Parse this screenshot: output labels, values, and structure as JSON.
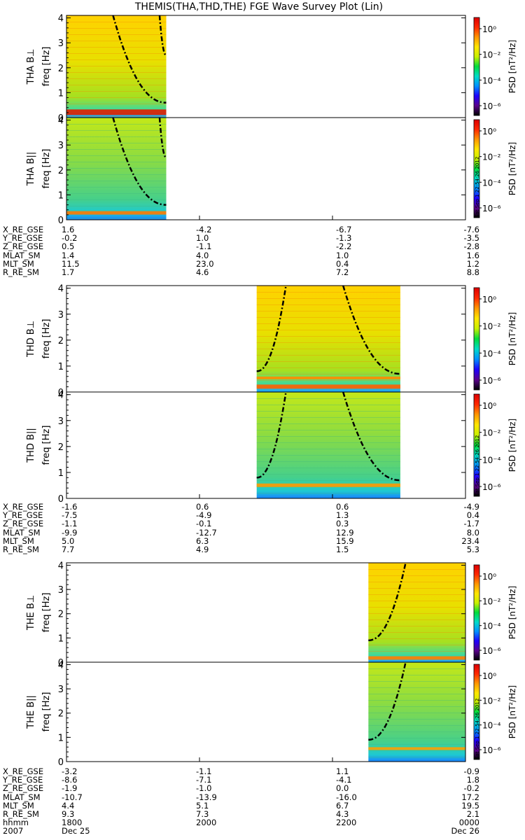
{
  "title": "THEMIS(THA,THD,THE) FGE Wave Survey Plot (Lin)",
  "colorbar": {
    "label": "PSD [nT²/Hz]",
    "ticks": [
      "10⁰",
      "10⁻²",
      "10⁻⁴",
      "10⁻⁶"
    ],
    "colors": [
      "#000000",
      "#5a008c",
      "#1e00ff",
      "#0090ff",
      "#00dcc8",
      "#00dc3c",
      "#c8f000",
      "#ffe600",
      "#ff9600",
      "#ff2800",
      "#dc0000"
    ]
  },
  "stamp": "Sat Sep  1 22:54:26 2012",
  "freq_label": "freq [Hz]",
  "freq_ticks": [
    "0",
    "1",
    "2",
    "3",
    "4"
  ],
  "probes": [
    {
      "id": "THA",
      "panels": [
        "THA B⊥",
        "THA B||"
      ],
      "data_range": [
        1800,
        1950
      ]
    },
    {
      "id": "THD",
      "panels": [
        "THD B⊥",
        "THD B||"
      ],
      "data_range": [
        2086,
        2302
      ]
    },
    {
      "id": "THE",
      "panels": [
        "THE B⊥",
        "THE B||"
      ],
      "data_range": [
        2254,
        2400
      ]
    }
  ],
  "ephemeris": [
    {
      "labels": [
        "X_RE_GSE",
        "Y_RE_GSE",
        "Z_RE_GSE",
        "MLAT_SM",
        "MLT_SM",
        "R_RE_SM"
      ],
      "cols": [
        [
          "1.6",
          "-0.2",
          "0.5",
          "1.4",
          "11.5",
          "1.7"
        ],
        [
          "-4.2",
          "1.0",
          "-1.1",
          "4.0",
          "23.0",
          "4.6"
        ],
        [
          "-6.7",
          "-1.3",
          "-2.2",
          "1.0",
          "0.4",
          "7.2"
        ],
        [
          "-7.6",
          "-3.5",
          "-2.8",
          "1.6",
          "1.2",
          "8.8"
        ]
      ]
    },
    {
      "labels": [
        "X_RE_GSE",
        "Y_RE_GSE",
        "Z_RE_GSE",
        "MLAT_SM",
        "MLT_SM",
        "R_RE_SM"
      ],
      "cols": [
        [
          "-1.6",
          "-7.5",
          "-1.1",
          "-9.9",
          "5.0",
          "7.7"
        ],
        [
          "0.6",
          "-4.9",
          "-0.1",
          "-12.7",
          "6.3",
          "4.9"
        ],
        [
          "0.6",
          "1.3",
          "0.3",
          "12.9",
          "15.9",
          "1.5"
        ],
        [
          "-4.9",
          "0.4",
          "-1.7",
          "8.0",
          "23.4",
          "5.3"
        ]
      ]
    },
    {
      "labels": [
        "X_RE_GSE",
        "Y_RE_GSE",
        "Z_RE_GSE",
        "MLAT_SM",
        "MLT_SM",
        "R_RE_SM",
        "hhmm",
        "2007"
      ],
      "cols": [
        [
          "-3.2",
          "-8.6",
          "-1.9",
          "-10.7",
          "4.4",
          "9.3",
          "1800",
          "Dec 25"
        ],
        [
          "-1.1",
          "-7.1",
          "-1.0",
          "-13.9",
          "5.1",
          "7.3",
          "2000",
          ""
        ],
        [
          "1.1",
          "-4.1",
          "0.0",
          "-16.0",
          "6.7",
          "4.3",
          "2200",
          ""
        ],
        [
          "-0.9",
          "1.8",
          "-0.2",
          "17.2",
          "19.5",
          "2.1",
          "0000",
          "Dec 26"
        ]
      ]
    }
  ],
  "chart_data": {
    "type": "heatmap",
    "title": "THEMIS(THA,THD,THE) FGE Wave Survey Plot (Lin)",
    "xlabel": "hhmm",
    "x_ticks": [
      "1800",
      "2000",
      "2200",
      "0000"
    ],
    "xlim": [
      1800,
      2400
    ],
    "ylabel": "freq [Hz]",
    "ylim": [
      0,
      4.1
    ],
    "colorbar": {
      "label": "PSD [nT²/Hz]",
      "scale": "log",
      "range": [
        1e-06,
        10.0
      ]
    },
    "series": [
      {
        "name": "THA B⊥",
        "x_range": [
          1800,
          1950
        ],
        "bands": [
          {
            "freq": 0.3,
            "level": "high"
          }
        ]
      },
      {
        "name": "THA B||",
        "x_range": [
          1800,
          1950
        ],
        "bands": [
          {
            "freq": 0.3,
            "level": "medium"
          }
        ]
      },
      {
        "name": "THD B⊥",
        "x_range": [
          2086,
          2302
        ],
        "bands": [
          {
            "freq": 0.25,
            "level": "medium"
          },
          {
            "freq": 0.65,
            "level": "medium"
          }
        ]
      },
      {
        "name": "THD B||",
        "x_range": [
          2086,
          2302
        ],
        "bands": [
          {
            "freq": 0.65,
            "level": "medium"
          }
        ]
      },
      {
        "name": "THE B⊥",
        "x_range": [
          2254,
          2400
        ],
        "bands": [
          {
            "freq": 0.25,
            "level": "medium"
          }
        ]
      },
      {
        "name": "THE B||",
        "x_range": [
          2254,
          2400
        ],
        "bands": [
          {
            "freq": 0.6,
            "level": "medium"
          }
        ]
      }
    ]
  }
}
